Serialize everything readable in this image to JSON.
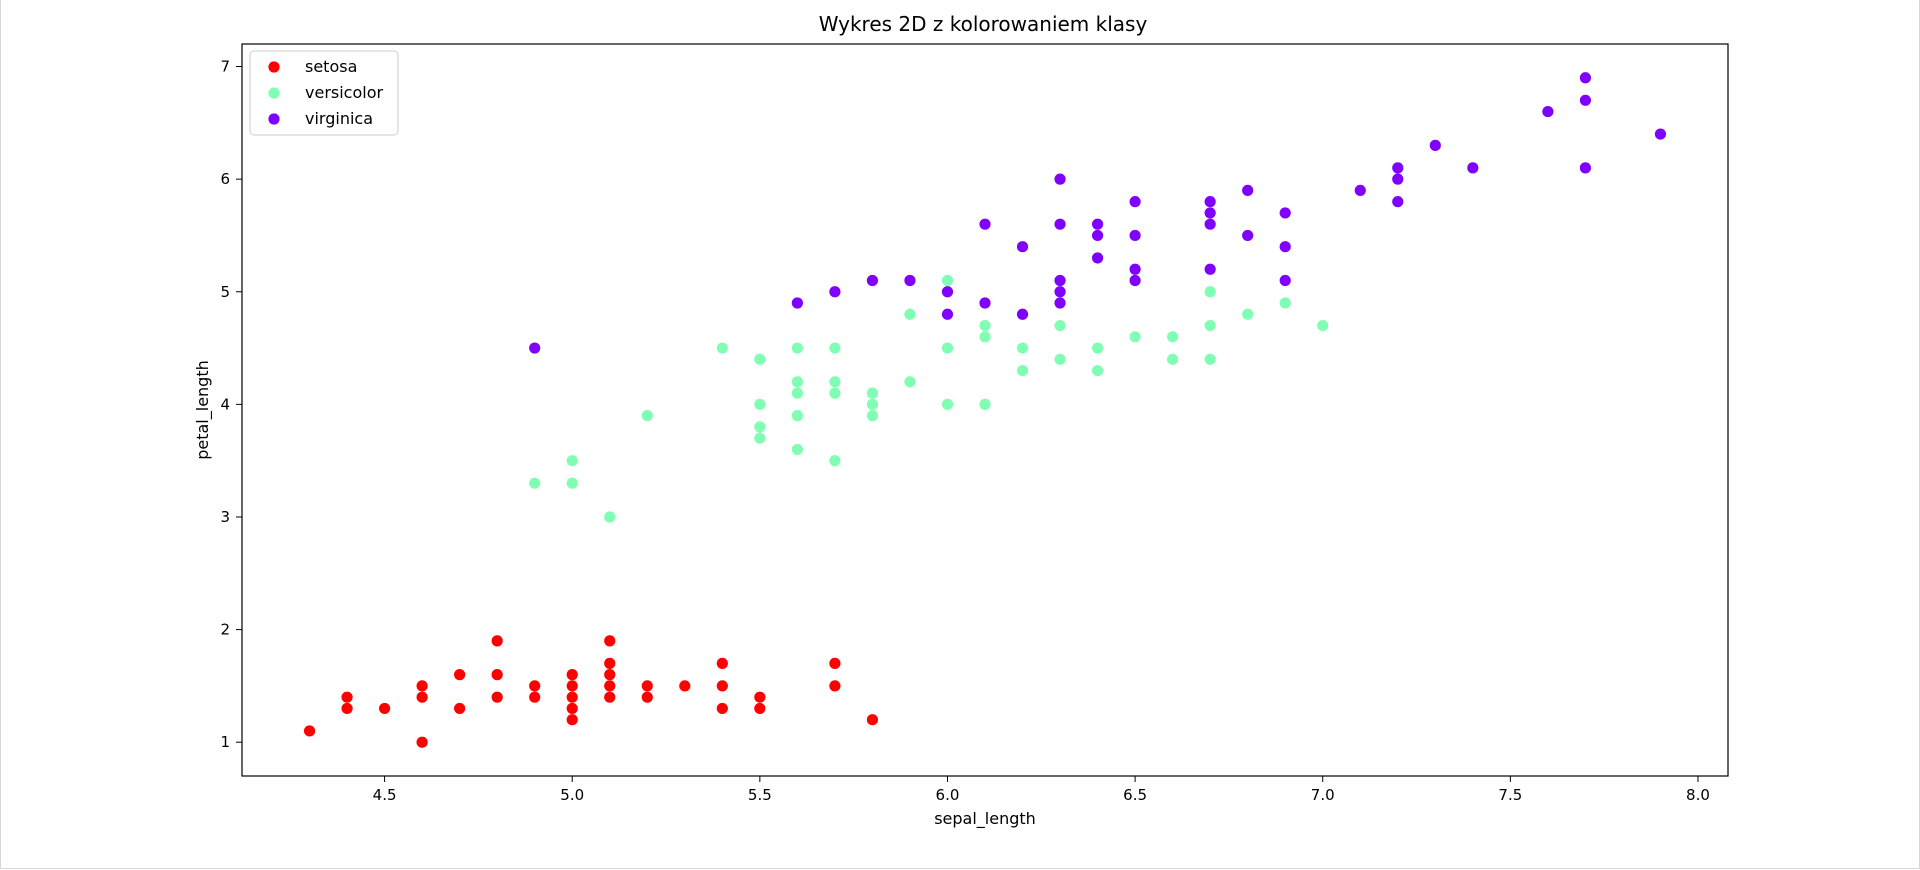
{
  "chart_data": {
    "type": "scatter",
    "title": "Wykres 2D z kolorowaniem klasy",
    "xlabel": "sepal_length",
    "ylabel": "petal_length",
    "xlim": [
      4.12,
      8.08
    ],
    "ylim": [
      0.7,
      7.2
    ],
    "xticks": [
      "4.5",
      "5.0",
      "5.5",
      "6.0",
      "6.5",
      "7.0",
      "7.5",
      "8.0"
    ],
    "yticks": [
      "1",
      "2",
      "3",
      "4",
      "5",
      "6",
      "7"
    ],
    "grid": false,
    "legend_position": "top-left",
    "series": [
      {
        "name": "setosa",
        "color": "#ff0000",
        "points": [
          [
            4.3,
            1.1
          ],
          [
            4.4,
            1.3
          ],
          [
            4.4,
            1.4
          ],
          [
            4.5,
            1.3
          ],
          [
            4.6,
            1.0
          ],
          [
            4.6,
            1.4
          ],
          [
            4.6,
            1.5
          ],
          [
            4.7,
            1.3
          ],
          [
            4.7,
            1.6
          ],
          [
            4.8,
            1.4
          ],
          [
            4.8,
            1.6
          ],
          [
            4.8,
            1.9
          ],
          [
            4.9,
            1.4
          ],
          [
            4.9,
            1.5
          ],
          [
            5.0,
            1.2
          ],
          [
            5.0,
            1.3
          ],
          [
            5.0,
            1.4
          ],
          [
            5.0,
            1.5
          ],
          [
            5.0,
            1.6
          ],
          [
            5.1,
            1.4
          ],
          [
            5.1,
            1.5
          ],
          [
            5.1,
            1.6
          ],
          [
            5.1,
            1.7
          ],
          [
            5.1,
            1.9
          ],
          [
            5.2,
            1.4
          ],
          [
            5.2,
            1.5
          ],
          [
            5.3,
            1.5
          ],
          [
            5.4,
            1.3
          ],
          [
            5.4,
            1.5
          ],
          [
            5.4,
            1.7
          ],
          [
            5.5,
            1.3
          ],
          [
            5.5,
            1.4
          ],
          [
            5.7,
            1.5
          ],
          [
            5.7,
            1.7
          ],
          [
            5.8,
            1.2
          ]
        ]
      },
      {
        "name": "versicolor",
        "color": "#80ffb4",
        "points": [
          [
            4.9,
            3.3
          ],
          [
            5.0,
            3.3
          ],
          [
            5.0,
            3.5
          ],
          [
            5.1,
            3.0
          ],
          [
            5.2,
            3.9
          ],
          [
            5.4,
            4.5
          ],
          [
            5.5,
            3.7
          ],
          [
            5.5,
            3.8
          ],
          [
            5.5,
            4.0
          ],
          [
            5.5,
            4.4
          ],
          [
            5.6,
            3.6
          ],
          [
            5.6,
            3.9
          ],
          [
            5.6,
            4.1
          ],
          [
            5.6,
            4.2
          ],
          [
            5.6,
            4.5
          ],
          [
            5.7,
            3.5
          ],
          [
            5.7,
            4.1
          ],
          [
            5.7,
            4.2
          ],
          [
            5.7,
            4.5
          ],
          [
            5.8,
            3.9
          ],
          [
            5.8,
            4.0
          ],
          [
            5.8,
            4.1
          ],
          [
            5.9,
            4.2
          ],
          [
            5.9,
            4.8
          ],
          [
            6.0,
            4.0
          ],
          [
            6.0,
            4.5
          ],
          [
            6.0,
            5.1
          ],
          [
            6.1,
            4.0
          ],
          [
            6.1,
            4.6
          ],
          [
            6.1,
            4.7
          ],
          [
            6.2,
            4.3
          ],
          [
            6.2,
            4.5
          ],
          [
            6.3,
            4.4
          ],
          [
            6.3,
            4.7
          ],
          [
            6.4,
            4.3
          ],
          [
            6.4,
            4.5
          ],
          [
            6.5,
            4.6
          ],
          [
            6.6,
            4.4
          ],
          [
            6.6,
            4.6
          ],
          [
            6.7,
            4.4
          ],
          [
            6.7,
            4.7
          ],
          [
            6.7,
            5.0
          ],
          [
            6.8,
            4.8
          ],
          [
            6.9,
            4.9
          ],
          [
            7.0,
            4.7
          ]
        ]
      },
      {
        "name": "virginica",
        "color": "#8000ff",
        "points": [
          [
            4.9,
            4.5
          ],
          [
            5.6,
            4.9
          ],
          [
            5.7,
            5.0
          ],
          [
            5.8,
            5.1
          ],
          [
            5.9,
            5.1
          ],
          [
            6.0,
            4.8
          ],
          [
            6.0,
            5.0
          ],
          [
            6.1,
            4.9
          ],
          [
            6.1,
            5.6
          ],
          [
            6.2,
            4.8
          ],
          [
            6.2,
            5.4
          ],
          [
            6.3,
            4.9
          ],
          [
            6.3,
            5.0
          ],
          [
            6.3,
            5.1
          ],
          [
            6.3,
            5.6
          ],
          [
            6.3,
            6.0
          ],
          [
            6.4,
            5.3
          ],
          [
            6.4,
            5.5
          ],
          [
            6.4,
            5.6
          ],
          [
            6.5,
            5.1
          ],
          [
            6.5,
            5.2
          ],
          [
            6.5,
            5.5
          ],
          [
            6.5,
            5.8
          ],
          [
            6.7,
            5.2
          ],
          [
            6.7,
            5.6
          ],
          [
            6.7,
            5.7
          ],
          [
            6.7,
            5.8
          ],
          [
            6.8,
            5.5
          ],
          [
            6.8,
            5.9
          ],
          [
            6.9,
            5.1
          ],
          [
            6.9,
            5.4
          ],
          [
            6.9,
            5.7
          ],
          [
            7.1,
            5.9
          ],
          [
            7.2,
            5.8
          ],
          [
            7.2,
            6.0
          ],
          [
            7.2,
            6.1
          ],
          [
            7.3,
            6.3
          ],
          [
            7.4,
            6.1
          ],
          [
            7.6,
            6.6
          ],
          [
            7.7,
            6.1
          ],
          [
            7.7,
            6.7
          ],
          [
            7.7,
            6.9
          ],
          [
            7.9,
            6.4
          ]
        ]
      }
    ]
  }
}
